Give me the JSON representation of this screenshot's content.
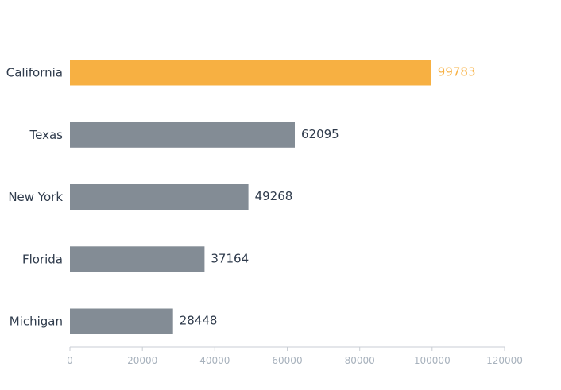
{
  "chart_data": {
    "type": "bar",
    "orientation": "horizontal",
    "categories": [
      "California",
      "Texas",
      "New York",
      "Florida",
      "Michigan"
    ],
    "values": [
      99783,
      62095,
      49268,
      37164,
      28448
    ],
    "highlight_index": 0,
    "colors": {
      "highlight": "#f7b042",
      "default": "#838c95",
      "label_default": "#2f3b4c"
    },
    "xlim": [
      0,
      120000
    ],
    "xticks": [
      0,
      20000,
      40000,
      60000,
      80000,
      100000,
      120000
    ],
    "title": "",
    "xlabel": "",
    "ylabel": "",
    "grid": false,
    "legend": "none"
  }
}
